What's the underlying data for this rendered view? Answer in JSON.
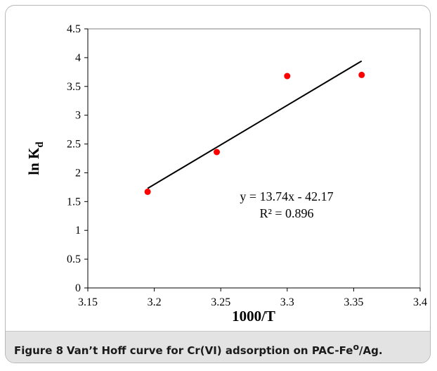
{
  "chart_data": {
    "type": "scatter",
    "x": [
      3.195,
      3.247,
      3.3,
      3.356
    ],
    "y": [
      1.67,
      2.36,
      3.68,
      3.7
    ],
    "series": [
      {
        "values": [
          1.67,
          2.36,
          3.68,
          3.7
        ]
      }
    ],
    "trendline": {
      "slope": 13.74,
      "intercept": -42.17,
      "x_range": [
        3.195,
        3.356
      ]
    },
    "xlabel": "1000/T",
    "ylabel_main": "ln K",
    "ylabel_sub": "d",
    "xlim": [
      3.15,
      3.4
    ],
    "ylim": [
      0,
      4.5
    ],
    "xticks": [
      "3.15",
      "3.2",
      "3.25",
      "3.3",
      "3.35",
      "3.4"
    ],
    "yticks": [
      "0",
      "0.5",
      "1",
      "1.5",
      "2",
      "2.5",
      "3",
      "3.5",
      "4",
      "4.5"
    ],
    "annotations": [
      "y = 13.74x - 42.17",
      "R² = 0.896"
    ],
    "grid": false,
    "colors": {
      "points": "#ff0000",
      "trendline": "#000000"
    }
  },
  "caption": {
    "figure_label": "Figure 8",
    "text_before_sup": "Van’t  Hoff curve for Cr(VI) adsorption on PAC-Fe",
    "sup": "o",
    "text_after_sup": "/Ag."
  }
}
